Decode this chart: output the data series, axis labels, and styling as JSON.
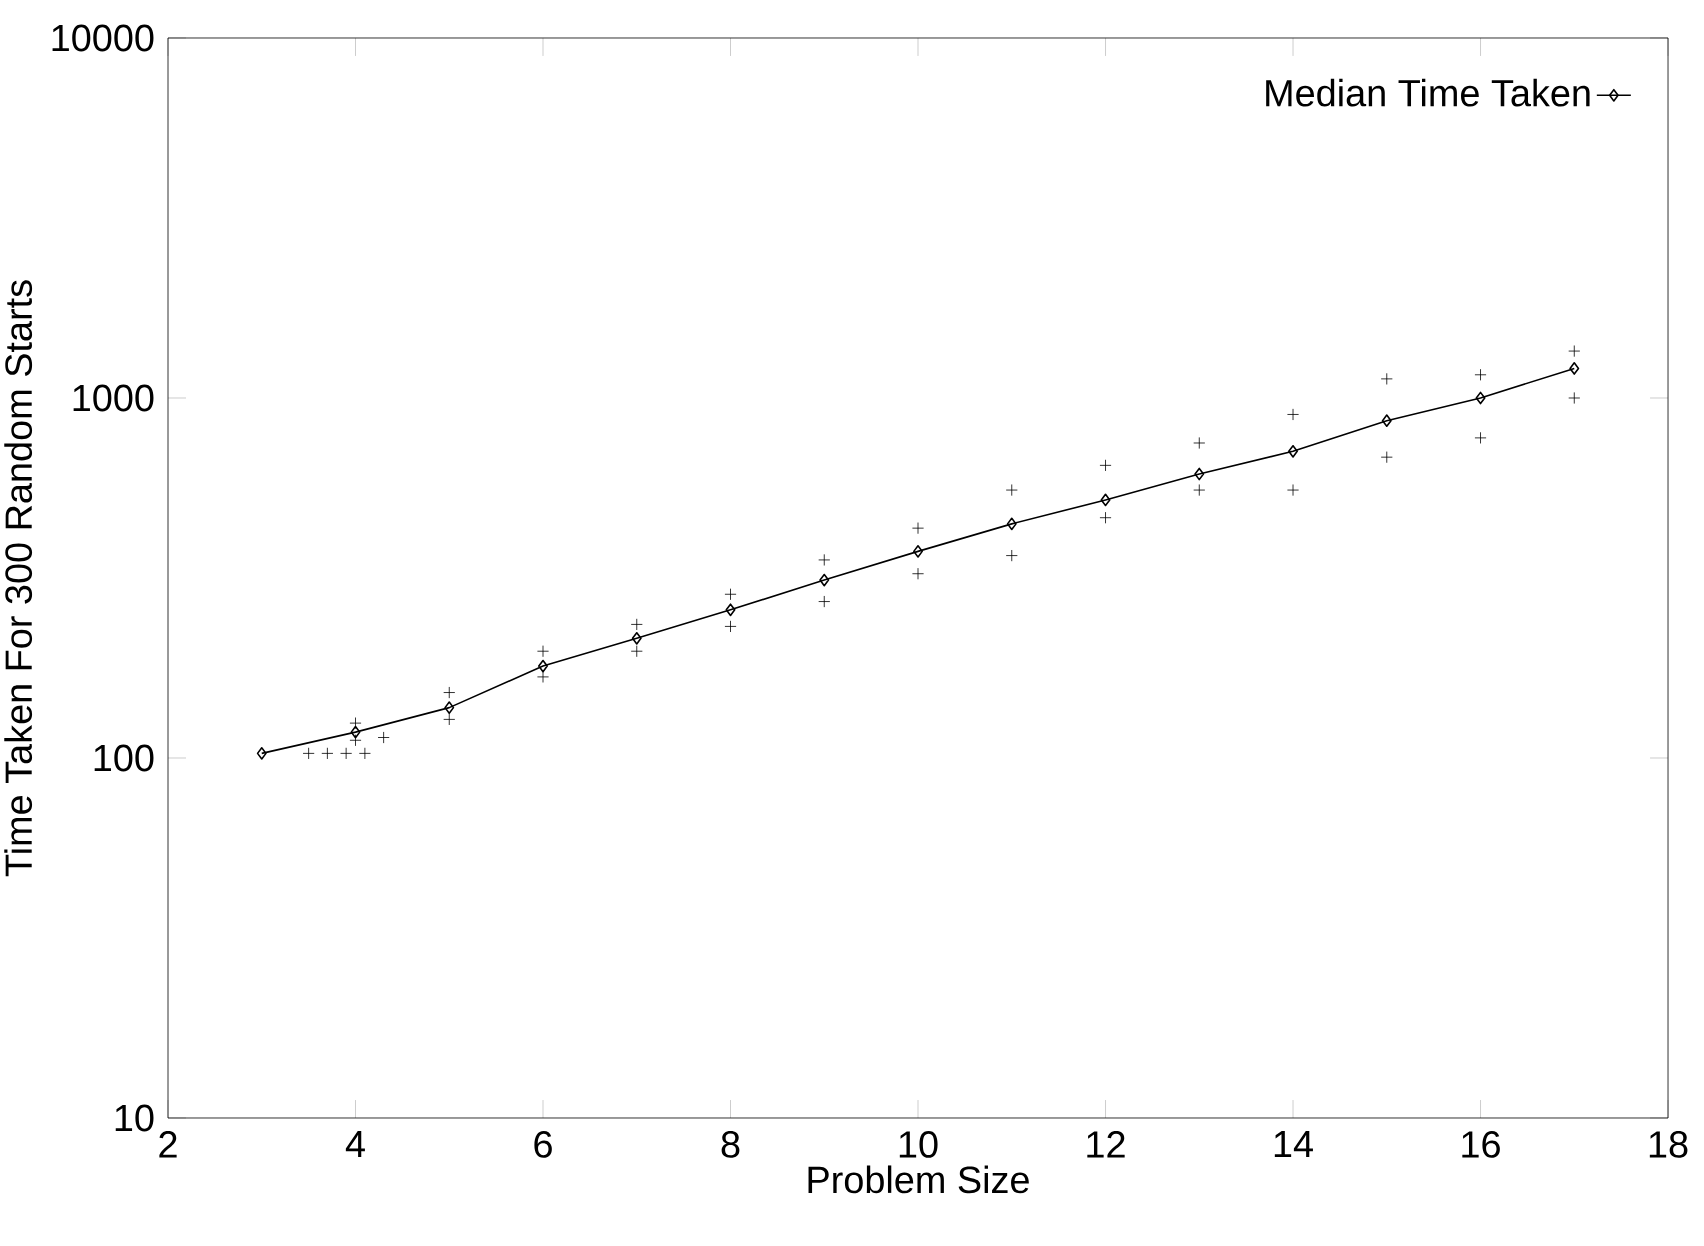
{
  "chart_data": {
    "type": "line",
    "xlabel": "Problem Size",
    "ylabel": "Time Taken For 300 Random Starts",
    "xlim": [
      2,
      18
    ],
    "xticks": [
      2,
      4,
      6,
      8,
      10,
      12,
      14,
      16,
      18
    ],
    "ylim": [
      10,
      10000
    ],
    "yticks": [
      10,
      100,
      1000,
      10000
    ],
    "log": "y",
    "grid": false,
    "legend": "top right",
    "series": [
      {
        "type": "scatter",
        "color": "#000000",
        "marker": "cross",
        "x": [
          3.5,
          3.7,
          3.9,
          4.1,
          4.0,
          4.0,
          4.3,
          5.0,
          5.0,
          6.0,
          6.0,
          7.0,
          7.0,
          8.0,
          8.0,
          9.0,
          9.0,
          10.0,
          10.0,
          11.0,
          11.0,
          12.0,
          12.0,
          13.0,
          13.0,
          14.0,
          14.0,
          15.0,
          15.0,
          16.0,
          16.0,
          17.0,
          17.0
        ],
        "values": [
          103,
          103,
          103,
          103,
          112,
          125,
          114,
          128,
          152,
          168,
          198,
          198,
          235,
          232,
          285,
          272,
          355,
          325,
          435,
          365,
          555,
          465,
          650,
          555,
          750,
          555,
          900,
          685,
          1130,
          775,
          1160,
          1000,
          1350
        ]
      },
      {
        "name": "Median Time Taken",
        "color": "#000000",
        "marker": "diamond",
        "line_style": "solid",
        "x": [
          3,
          4,
          5,
          6,
          7,
          8,
          9,
          10,
          11,
          12,
          13,
          14,
          15,
          16,
          17
        ],
        "values": [
          103,
          118,
          138,
          180,
          215,
          258,
          312,
          375,
          447,
          521,
          615,
          711,
          865,
          1000,
          1208
        ]
      }
    ]
  }
}
